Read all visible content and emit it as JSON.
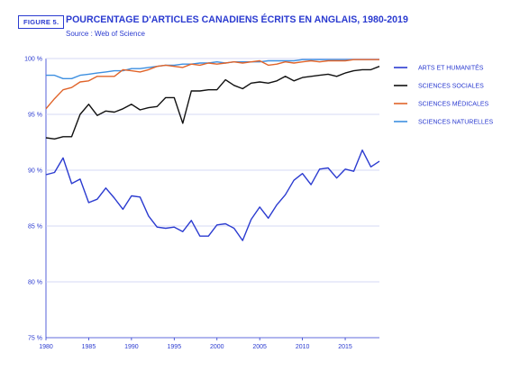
{
  "figure": {
    "label": "FIGURE 5.",
    "title": "POURCENTAGE D'ARTICLES CANADIENS ÉCRITS EN ANGLAIS, 1980-2019",
    "source": "Source : Web of Science"
  },
  "chart_data": {
    "type": "line",
    "title": "POURCENTAGE D'ARTICLES CANADIENS ÉCRITS EN ANGLAIS, 1980-2019",
    "xlabel": "",
    "ylabel": "",
    "xlim": [
      1980,
      2019
    ],
    "ylim": [
      75,
      100
    ],
    "x_ticks": [
      1980,
      1985,
      1990,
      1995,
      2000,
      2005,
      2010,
      2015
    ],
    "y_ticks": [
      75,
      80,
      85,
      90,
      95,
      100
    ],
    "y_tick_labels": [
      "75 %",
      "80 %",
      "85 %",
      "90 %",
      "95 %",
      "100 %"
    ],
    "grid": "horizontal at 95, 90, 85, 80 (dashed-light); solid at 100",
    "legend_position": "right",
    "x": [
      1980,
      1981,
      1982,
      1983,
      1984,
      1985,
      1986,
      1987,
      1988,
      1989,
      1990,
      1991,
      1992,
      1993,
      1994,
      1995,
      1996,
      1997,
      1998,
      1999,
      2000,
      2001,
      2002,
      2003,
      2004,
      2005,
      2006,
      2007,
      2008,
      2009,
      2010,
      2011,
      2012,
      2013,
      2014,
      2015,
      2016,
      2017,
      2018,
      2019
    ],
    "series": [
      {
        "name": "ARTS ET HUMANITÉS",
        "color": "#2b3bd0",
        "values": [
          89.6,
          89.8,
          91.1,
          88.8,
          89.2,
          87.1,
          87.4,
          88.4,
          87.5,
          86.5,
          87.7,
          87.6,
          85.9,
          84.9,
          84.8,
          84.9,
          84.5,
          85.5,
          84.1,
          84.1,
          85.1,
          85.2,
          84.8,
          83.7,
          85.6,
          86.7,
          85.7,
          86.9,
          87.8,
          89.1,
          89.7,
          88.7,
          90.1,
          90.2,
          89.3,
          90.1,
          89.9,
          91.8,
          90.3,
          90.8
        ]
      },
      {
        "name": "SCIENCES SOCIALES",
        "color": "#111111",
        "values": [
          92.9,
          92.8,
          93.0,
          93.0,
          95.0,
          95.9,
          94.9,
          95.3,
          95.2,
          95.5,
          95.9,
          95.4,
          95.6,
          95.7,
          96.5,
          96.5,
          94.2,
          97.1,
          97.1,
          97.2,
          97.2,
          98.1,
          97.6,
          97.3,
          97.8,
          97.9,
          97.8,
          98.0,
          98.4,
          98.0,
          98.3,
          98.4,
          98.5,
          98.6,
          98.4,
          98.7,
          98.9,
          99.0,
          99.0,
          99.3
        ]
      },
      {
        "name": "SCIENCES MÉDICALES",
        "color": "#e0642a",
        "values": [
          95.5,
          96.4,
          97.2,
          97.4,
          97.9,
          98.0,
          98.4,
          98.4,
          98.4,
          99.0,
          98.9,
          98.8,
          99.0,
          99.3,
          99.4,
          99.3,
          99.2,
          99.5,
          99.4,
          99.6,
          99.5,
          99.6,
          99.7,
          99.6,
          99.7,
          99.8,
          99.4,
          99.5,
          99.7,
          99.6,
          99.7,
          99.8,
          99.7,
          99.8,
          99.8,
          99.8,
          99.9,
          99.9,
          99.9,
          99.9
        ]
      },
      {
        "name": "SCIENCES NATURELLES",
        "color": "#3d8fe0",
        "values": [
          98.5,
          98.5,
          98.2,
          98.2,
          98.5,
          98.6,
          98.7,
          98.8,
          98.9,
          98.9,
          99.1,
          99.1,
          99.2,
          99.3,
          99.4,
          99.4,
          99.5,
          99.5,
          99.6,
          99.6,
          99.7,
          99.6,
          99.7,
          99.7,
          99.7,
          99.7,
          99.8,
          99.8,
          99.8,
          99.8,
          99.9,
          99.9,
          99.9,
          99.9,
          99.9,
          99.9,
          99.9,
          99.9,
          99.9,
          99.9
        ]
      }
    ]
  }
}
